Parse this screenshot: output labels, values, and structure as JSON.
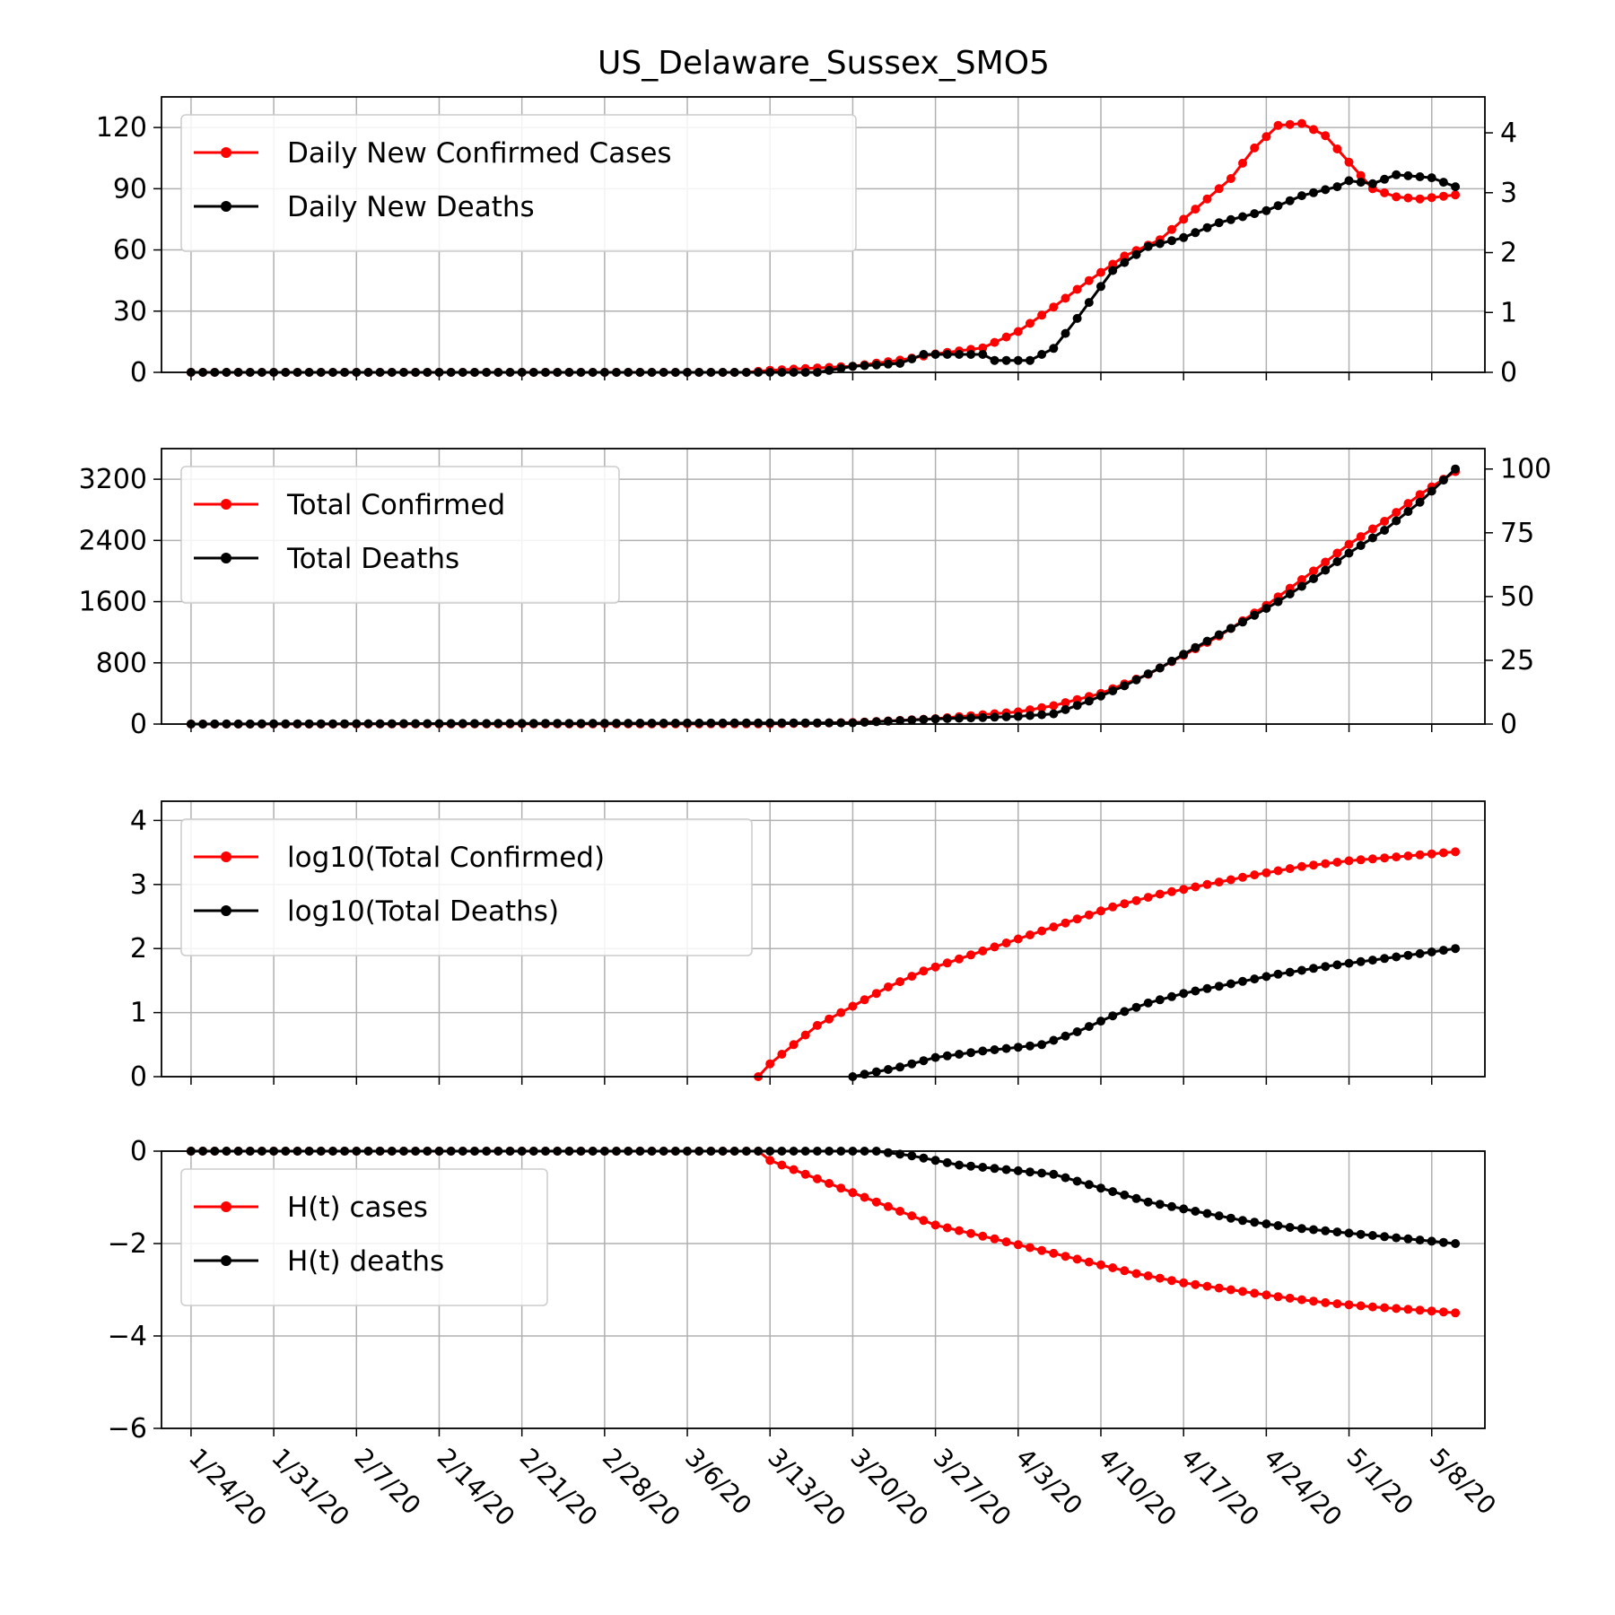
{
  "figure_title": "US_Delaware_Sussex_SMO5",
  "colors": {
    "cases": "#ff0000",
    "deaths": "#000000",
    "grid": "#b0b0b0"
  },
  "x_dates": [
    "1/24/20",
    "1/31/20",
    "2/7/20",
    "2/14/20",
    "2/21/20",
    "2/28/20",
    "3/6/20",
    "3/13/20",
    "3/20/20",
    "3/27/20",
    "4/3/20",
    "4/10/20",
    "4/17/20",
    "4/24/20",
    "5/1/20",
    "5/8/20"
  ],
  "chart_data": [
    {
      "type": "line",
      "x_start": "1/24/20",
      "x_end": "5/10/20",
      "ylim_left": [
        0,
        135
      ],
      "ylim_right": [
        0,
        4.6
      ],
      "yticks_left": [
        "0",
        "30",
        "60",
        "90",
        "120"
      ],
      "yticks_right": [
        "0",
        "1",
        "2",
        "3",
        "4"
      ],
      "grid": true,
      "legend_position": "top-left",
      "series": [
        {
          "name": "Daily New Confirmed Cases",
          "color": "#ff0000",
          "axis": "left",
          "points": [
            [
              "1/24/20",
              0
            ],
            [
              "3/11/20",
              0
            ],
            [
              "3/13/20",
              1
            ],
            [
              "3/20/20",
              3
            ],
            [
              "3/24/20",
              6
            ],
            [
              "3/27/20",
              9
            ],
            [
              "3/31/20",
              12
            ],
            [
              "4/3/20",
              20
            ],
            [
              "4/6/20",
              32
            ],
            [
              "4/9/20",
              45
            ],
            [
              "4/12/20",
              57
            ],
            [
              "4/15/20",
              65
            ],
            [
              "4/18/20",
              80
            ],
            [
              "4/21/20",
              95
            ],
            [
              "4/23/20",
              110
            ],
            [
              "4/25/20",
              121
            ],
            [
              "4/27/20",
              122
            ],
            [
              "4/29/20",
              116
            ],
            [
              "5/1/20",
              103
            ],
            [
              "5/3/20",
              90
            ],
            [
              "5/5/20",
              86
            ],
            [
              "5/7/20",
              85
            ],
            [
              "5/10/20",
              87
            ]
          ]
        },
        {
          "name": "Daily New Deaths",
          "color": "#000000",
          "axis": "right",
          "points": [
            [
              "1/24/20",
              0
            ],
            [
              "3/17/20",
              0
            ],
            [
              "3/20/20",
              0.1
            ],
            [
              "3/24/20",
              0.15
            ],
            [
              "3/26/20",
              0.3
            ],
            [
              "3/31/20",
              0.3
            ],
            [
              "4/1/20",
              0.2
            ],
            [
              "4/4/20",
              0.2
            ],
            [
              "4/6/20",
              0.4
            ],
            [
              "4/8/20",
              0.9
            ],
            [
              "4/11/20",
              1.7
            ],
            [
              "4/14/20",
              2.1
            ],
            [
              "4/17/20",
              2.25
            ],
            [
              "4/20/20",
              2.5
            ],
            [
              "4/24/20",
              2.7
            ],
            [
              "4/27/20",
              2.95
            ],
            [
              "4/30/20",
              3.1
            ],
            [
              "5/1/20",
              3.2
            ],
            [
              "5/3/20",
              3.15
            ],
            [
              "5/5/20",
              3.3
            ],
            [
              "5/8/20",
              3.25
            ],
            [
              "5/10/20",
              3.1
            ]
          ]
        }
      ]
    },
    {
      "type": "line",
      "x_start": "1/24/20",
      "x_end": "5/10/20",
      "ylim_left": [
        0,
        3600
      ],
      "ylim_right": [
        0,
        108
      ],
      "yticks_left": [
        "0",
        "800",
        "1600",
        "2400",
        "3200"
      ],
      "yticks_right": [
        "0",
        "25",
        "50",
        "75",
        "100"
      ],
      "grid": true,
      "legend_position": "top-left",
      "series": [
        {
          "name": "Total Confirmed",
          "color": "#ff0000",
          "axis": "left",
          "points": [
            [
              "1/24/20",
              0
            ],
            [
              "3/13/20",
              2
            ],
            [
              "3/20/20",
              20
            ],
            [
              "3/27/20",
              70
            ],
            [
              "4/3/20",
              160
            ],
            [
              "4/6/20",
              240
            ],
            [
              "4/10/20",
              400
            ],
            [
              "4/14/20",
              650
            ],
            [
              "4/17/20",
              900
            ],
            [
              "4/20/20",
              1150
            ],
            [
              "4/24/20",
              1550
            ],
            [
              "4/28/20",
              2000
            ],
            [
              "5/1/20",
              2350
            ],
            [
              "5/4/20",
              2650
            ],
            [
              "5/7/20",
              3000
            ],
            [
              "5/10/20",
              3300
            ]
          ]
        },
        {
          "name": "Total Deaths",
          "color": "#000000",
          "axis": "right",
          "points": [
            [
              "1/24/20",
              0
            ],
            [
              "3/20/20",
              0.5
            ],
            [
              "3/27/20",
              2
            ],
            [
              "4/3/20",
              3
            ],
            [
              "4/6/20",
              4
            ],
            [
              "4/9/20",
              9
            ],
            [
              "4/12/20",
              15
            ],
            [
              "4/15/20",
              22
            ],
            [
              "4/18/20",
              30
            ],
            [
              "4/22/20",
              40
            ],
            [
              "4/25/20",
              48
            ],
            [
              "4/28/20",
              57
            ],
            [
              "5/1/20",
              67
            ],
            [
              "5/4/20",
              76
            ],
            [
              "5/7/20",
              87
            ],
            [
              "5/10/20",
              100
            ]
          ]
        }
      ]
    },
    {
      "type": "line",
      "x_start": "1/24/20",
      "x_end": "5/10/20",
      "ylim": [
        0,
        4.3
      ],
      "yticks": [
        "0",
        "1",
        "2",
        "3",
        "4"
      ],
      "grid": true,
      "legend_position": "top-left",
      "series": [
        {
          "name": "log10(Total Confirmed)",
          "color": "#ff0000",
          "points": [
            [
              "3/12/20",
              0
            ],
            [
              "3/13/20",
              0.2
            ],
            [
              "3/15/20",
              0.5
            ],
            [
              "3/17/20",
              0.8
            ],
            [
              "3/20/20",
              1.1
            ],
            [
              "3/23/20",
              1.4
            ],
            [
              "3/26/20",
              1.65
            ],
            [
              "3/30/20",
              1.9
            ],
            [
              "4/3/20",
              2.15
            ],
            [
              "4/7/20",
              2.4
            ],
            [
              "4/11/20",
              2.65
            ],
            [
              "4/15/20",
              2.85
            ],
            [
              "4/19/20",
              3.0
            ],
            [
              "4/23/20",
              3.15
            ],
            [
              "4/27/20",
              3.28
            ],
            [
              "5/1/20",
              3.37
            ],
            [
              "5/5/20",
              3.43
            ],
            [
              "5/10/20",
              3.51
            ]
          ]
        },
        {
          "name": "log10(Total Deaths)",
          "color": "#000000",
          "points": [
            [
              "3/20/20",
              0
            ],
            [
              "3/24/20",
              0.15
            ],
            [
              "3/27/20",
              0.3
            ],
            [
              "3/31/20",
              0.4
            ],
            [
              "4/5/20",
              0.5
            ],
            [
              "4/8/20",
              0.7
            ],
            [
              "4/11/20",
              0.95
            ],
            [
              "4/14/20",
              1.15
            ],
            [
              "4/17/20",
              1.3
            ],
            [
              "4/21/20",
              1.45
            ],
            [
              "4/25/20",
              1.6
            ],
            [
              "4/29/20",
              1.72
            ],
            [
              "5/3/20",
              1.82
            ],
            [
              "5/7/20",
              1.92
            ],
            [
              "5/10/20",
              2.0
            ]
          ]
        }
      ]
    },
    {
      "type": "line",
      "x_start": "1/24/20",
      "x_end": "5/10/20",
      "ylim": [
        -6,
        0
      ],
      "yticks": [
        "0",
        "−2",
        "−4",
        "−6"
      ],
      "grid": true,
      "legend_position": "top-left",
      "series": [
        {
          "name": "H(t) cases",
          "color": "#ff0000",
          "points": [
            [
              "1/24/20",
              0
            ],
            [
              "3/12/20",
              0
            ],
            [
              "3/13/20",
              -0.2
            ],
            [
              "3/16/20",
              -0.5
            ],
            [
              "3/20/20",
              -0.9
            ],
            [
              "3/24/20",
              -1.3
            ],
            [
              "3/27/20",
              -1.6
            ],
            [
              "4/1/20",
              -1.9
            ],
            [
              "4/5/20",
              -2.15
            ],
            [
              "4/9/20",
              -2.4
            ],
            [
              "4/13/20",
              -2.65
            ],
            [
              "4/17/20",
              -2.85
            ],
            [
              "4/21/20",
              -3.0
            ],
            [
              "4/25/20",
              -3.15
            ],
            [
              "4/29/20",
              -3.28
            ],
            [
              "5/3/20",
              -3.37
            ],
            [
              "5/7/20",
              -3.44
            ],
            [
              "5/10/20",
              -3.5
            ]
          ]
        },
        {
          "name": "H(t) deaths",
          "color": "#000000",
          "points": [
            [
              "1/24/20",
              0
            ],
            [
              "3/20/20",
              0
            ],
            [
              "3/22/20",
              0
            ],
            [
              "3/25/20",
              -0.1
            ],
            [
              "3/29/20",
              -0.3
            ],
            [
              "4/2/20",
              -0.4
            ],
            [
              "4/6/20",
              -0.5
            ],
            [
              "4/10/20",
              -0.8
            ],
            [
              "4/14/20",
              -1.1
            ],
            [
              "4/18/20",
              -1.3
            ],
            [
              "4/22/20",
              -1.5
            ],
            [
              "4/26/20",
              -1.65
            ],
            [
              "4/30/20",
              -1.75
            ],
            [
              "5/4/20",
              -1.85
            ],
            [
              "5/8/20",
              -1.95
            ],
            [
              "5/10/20",
              -2.0
            ]
          ]
        }
      ]
    }
  ]
}
